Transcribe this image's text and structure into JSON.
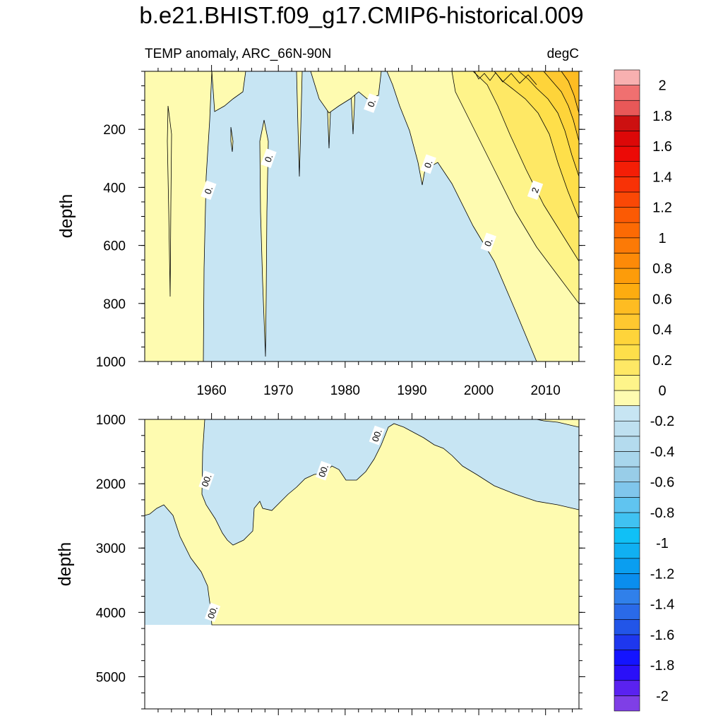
{
  "chart_data": {
    "type": "contour",
    "title": "b.e21.BHIST.f09_g17.CMIP6-historical.009",
    "panels": [
      {
        "left_string": "TEMP anomaly, ARC_66N-90N",
        "right_string": "degC",
        "ylabel": "depth",
        "xlim": [
          1950,
          2015
        ],
        "ylim": [
          0,
          1000
        ],
        "y_inverted": true,
        "x_ticks": [
          1960,
          1970,
          1980,
          1990,
          2000,
          2010
        ],
        "x_tick_labels": [
          "1960",
          "1970",
          "1980",
          "1990",
          "2000",
          "2010"
        ],
        "y_ticks": [
          200,
          400,
          600,
          800,
          1000
        ],
        "y_tick_labels": [
          "200",
          "400",
          "600",
          "800",
          "1000"
        ],
        "contour_labels": [
          {
            "text": "0.",
            "x": 1959.6,
            "y": 410
          },
          {
            "text": "0.",
            "x": 1968.6,
            "y": 300
          },
          {
            "text": "0.",
            "x": 1984.0,
            "y": 110
          },
          {
            "text": "0.",
            "x": 1992.5,
            "y": 320
          },
          {
            "text": "0.",
            "x": 2001.5,
            "y": 590
          },
          {
            "text": "2",
            "x": 2008.5,
            "y": 410
          }
        ]
      },
      {
        "left_string": "",
        "right_string": "",
        "ylabel": "depth",
        "xlim": [
          1950,
          2015
        ],
        "ylim": [
          1000,
          5500
        ],
        "y_inverted": true,
        "x_ticks": [
          1960,
          1970,
          1980,
          1990,
          2000,
          2010
        ],
        "y_ticks": [
          1000,
          2000,
          3000,
          4000,
          5000
        ],
        "y_tick_labels": [
          "1000",
          "2000",
          "3000",
          "4000",
          "5000"
        ],
        "data_bottom_depth": 4125,
        "contour_labels": [
          {
            "text": "00.",
            "x": 1959.3,
            "y": 1950
          },
          {
            "text": "00.",
            "x": 1976.8,
            "y": 1800
          },
          {
            "text": "00.",
            "x": 1984.8,
            "y": 1250
          },
          {
            "text": "00.",
            "x": 1960.2,
            "y": 4000
          }
        ]
      }
    ],
    "colorbar": {
      "levels": [
        -2.0,
        -1.9,
        -1.8,
        -1.7,
        -1.6,
        -1.5,
        -1.4,
        -1.3,
        -1.2,
        -1.1,
        -1.0,
        -0.9,
        -0.8,
        -0.7,
        -0.6,
        -0.5,
        -0.4,
        -0.3,
        -0.2,
        -0.1,
        0.0,
        0.1,
        0.2,
        0.3,
        0.4,
        0.5,
        0.6,
        0.7,
        0.8,
        0.9,
        1.0,
        1.1,
        1.2,
        1.3,
        1.4,
        1.5,
        1.6,
        1.7,
        1.8,
        1.9,
        2.0
      ],
      "labels": [
        "-2",
        "-1.8",
        "-1.6",
        "-1.4",
        "-1.2",
        "-1",
        "-0.8",
        "-0.6",
        "-0.4",
        "-0.2",
        "0",
        "0.2",
        "0.4",
        "0.6",
        "0.8",
        "1",
        "1.2",
        "1.4",
        "1.6",
        "1.8",
        "2"
      ],
      "colors": [
        "#7f3fe6",
        "#5a22f0",
        "#2a10f8",
        "#1414ff",
        "#1e37ee",
        "#2255e8",
        "#2a6ae8",
        "#3080ea",
        "#0a8eee",
        "#0a9ef0",
        "#10b0f2",
        "#10c0f6",
        "#40c2f2",
        "#60c4f0",
        "#80c6ec",
        "#98cde8",
        "#a8d6ec",
        "#b4dbee",
        "#bee0f0",
        "#c7e5f3",
        "#fefbb0",
        "#fef48a",
        "#fee865",
        "#fedf4a",
        "#fed43a",
        "#fec830",
        "#febc22",
        "#fdac10",
        "#fd9c0a",
        "#fd8a08",
        "#fc7a06",
        "#fc6a04",
        "#fb5a04",
        "#fa4806",
        "#f83206",
        "#f41e06",
        "#ec0a06",
        "#dc0808",
        "#cc1010",
        "#e85858",
        "#f07070",
        "#f8b0b0"
      ]
    }
  }
}
